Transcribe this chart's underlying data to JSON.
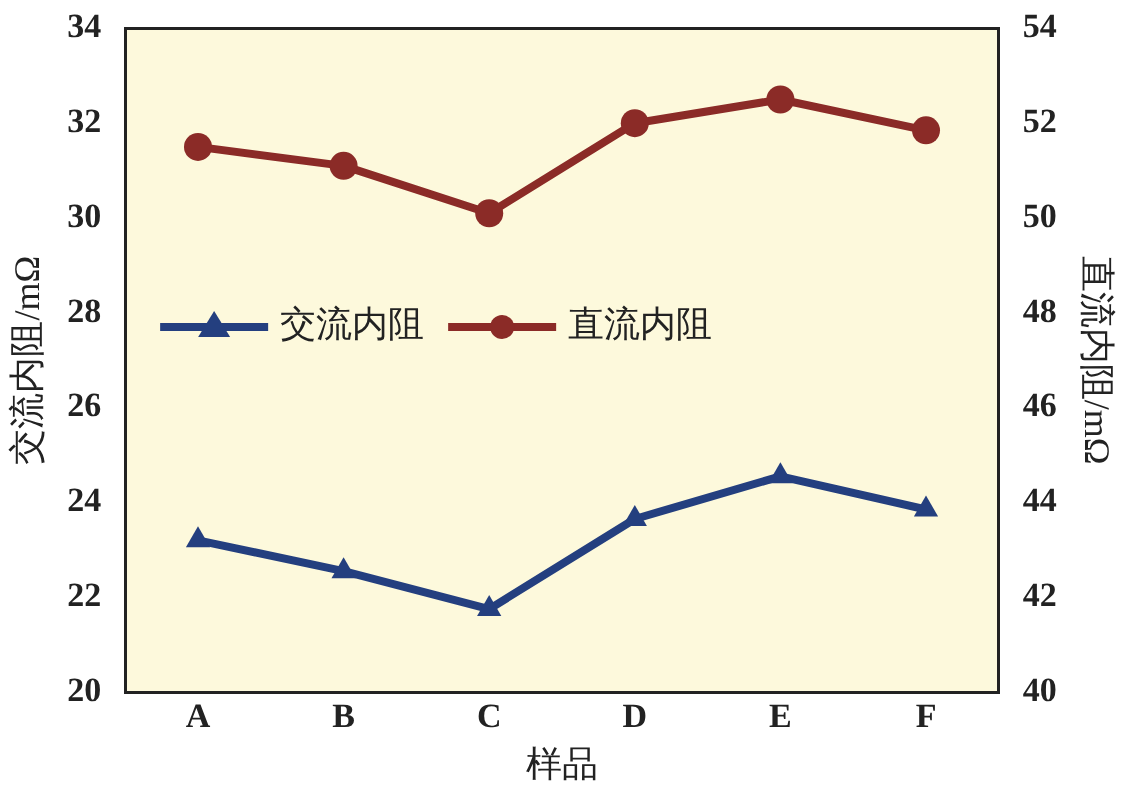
{
  "chart_data": {
    "type": "line",
    "xlabel": "样品",
    "ylabel": "交流内阻/mΩ",
    "y2label": "直流内阻/mΩ",
    "categories": [
      "A",
      "B",
      "C",
      "D",
      "E",
      "F"
    ],
    "series": [
      {
        "name": "交流内阻",
        "color": "#243f7f",
        "values": [
          23.2,
          22.55,
          21.75,
          23.65,
          24.55,
          23.85
        ],
        "marker": "triangle"
      },
      {
        "name": "直流内阻",
        "color": "#8b2b27",
        "values": [
          51.5,
          51.1,
          50.1,
          52.0,
          52.5,
          51.85
        ],
        "marker": "circle",
        "axis": "y2"
      }
    ],
    "ylim": [
      20,
      34
    ],
    "yticks": [
      20,
      22,
      24,
      26,
      28,
      30,
      32,
      34
    ],
    "y2lim": [
      40,
      54
    ],
    "y2ticks": [
      40,
      42,
      44,
      46,
      48,
      50,
      52,
      54
    ],
    "grid": false,
    "legend": "left",
    "line_style": "solid"
  }
}
